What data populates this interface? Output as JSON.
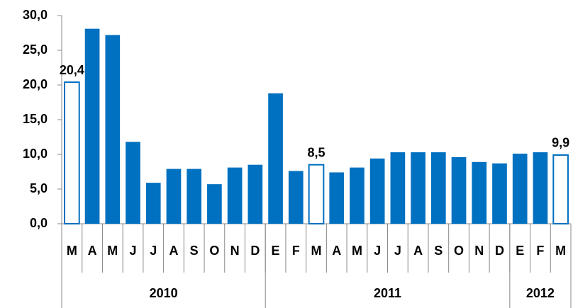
{
  "chart_data": {
    "type": "bar",
    "categories": [
      "M",
      "A",
      "M",
      "J",
      "J",
      "A",
      "S",
      "O",
      "N",
      "D",
      "E",
      "F",
      "M",
      "A",
      "M",
      "J",
      "J",
      "A",
      "S",
      "O",
      "N",
      "D",
      "E",
      "F",
      "M"
    ],
    "values": [
      20.4,
      28.1,
      27.2,
      11.8,
      5.9,
      7.9,
      7.9,
      5.7,
      8.1,
      8.5,
      18.8,
      7.6,
      8.5,
      7.4,
      8.1,
      9.4,
      10.3,
      10.3,
      10.3,
      9.6,
      8.9,
      8.7,
      10.1,
      10.3,
      9.9
    ],
    "value_labels": [
      "20,4",
      null,
      null,
      null,
      null,
      null,
      null,
      null,
      null,
      null,
      null,
      null,
      "8,5",
      null,
      null,
      null,
      null,
      null,
      null,
      null,
      null,
      null,
      null,
      null,
      "9,9"
    ],
    "highlight": [
      0,
      12,
      24
    ],
    "groups": [
      {
        "name": "2010",
        "size": 10
      },
      {
        "name": "2011",
        "size": 12
      },
      {
        "name": "2012",
        "size": 3
      }
    ],
    "color": "#0070c0",
    "ylim": [
      0,
      30
    ],
    "yticks": [
      {
        "value": 0,
        "label": "0,0"
      },
      {
        "value": 5,
        "label": "5,0"
      },
      {
        "value": 10,
        "label": "10,0"
      },
      {
        "value": 15,
        "label": "15,0"
      },
      {
        "value": 20,
        "label": "20,0"
      },
      {
        "value": 25,
        "label": "25,0"
      },
      {
        "value": 30,
        "label": "30,0"
      }
    ]
  }
}
